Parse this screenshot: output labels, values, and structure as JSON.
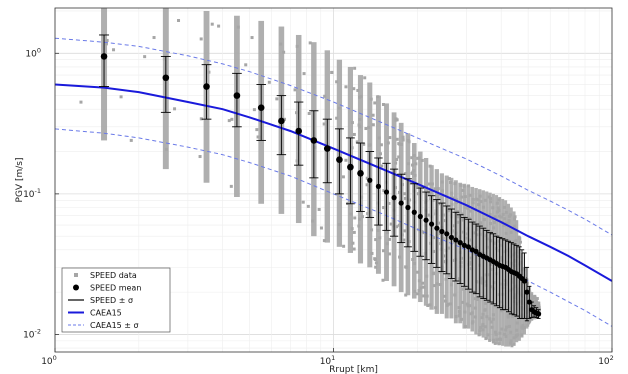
{
  "chart_data": {
    "type": "scatter",
    "title": "",
    "xlabel": "Rrupt [km]",
    "ylabel": "PGV [m/s]",
    "xscale": "log",
    "yscale": "log",
    "xlim": [
      1,
      100
    ],
    "ylim": [
      0.0075,
      2.1
    ],
    "grid": true,
    "legend_position": "bottom-left",
    "x_ticks": [
      {
        "value": 1,
        "base": "10",
        "exp": "0"
      },
      {
        "value": 10,
        "base": "10",
        "exp": "1"
      },
      {
        "value": 100,
        "base": "10",
        "exp": "2"
      }
    ],
    "y_ticks": [
      {
        "value": 0.01,
        "base": "10",
        "exp": "-2"
      },
      {
        "value": 0.1,
        "base": "10",
        "exp": "-1"
      },
      {
        "value": 1,
        "base": "10",
        "exp": "0"
      }
    ],
    "series": [
      {
        "name": "SPEED data",
        "kind": "scatter-band",
        "color": "#a6a6a6",
        "x": [
          1.5,
          2.5,
          3.5,
          4.5,
          5.5,
          6.5,
          7.5,
          8.5,
          9.5,
          10.5,
          11.5,
          12.5,
          13.5,
          14.5,
          15.5,
          16.5,
          17.5,
          18.5,
          19.5,
          20.5,
          21.5,
          22.5,
          23.5,
          24.5,
          25.5,
          26.5,
          27.5,
          28.5,
          29.5,
          30.5,
          31.5,
          32.5,
          33.5,
          34.5,
          35.5,
          36.5,
          37.5,
          38.5,
          39.5,
          40.5,
          41.5,
          42.5,
          43.5,
          44.5,
          45.5,
          46.5,
          47.5,
          48.5,
          49.5,
          50.5,
          51.5,
          52.5,
          53.5,
          54.5
        ],
        "ymin": [
          0.24,
          0.15,
          0.12,
          0.095,
          0.085,
          0.072,
          0.062,
          0.05,
          0.045,
          0.042,
          0.038,
          0.032,
          0.03,
          0.027,
          0.024,
          0.022,
          0.02,
          0.019,
          0.018,
          0.017,
          0.016,
          0.015,
          0.014,
          0.014,
          0.013,
          0.013,
          0.012,
          0.012,
          0.011,
          0.011,
          0.0105,
          0.01,
          0.0098,
          0.0095,
          0.0092,
          0.009,
          0.0088,
          0.0085,
          0.0084,
          0.0083,
          0.0082,
          0.0082,
          0.0083,
          0.0085,
          0.0088,
          0.009,
          0.0095,
          0.01,
          0.011,
          0.012,
          0.0125,
          0.013,
          0.0132,
          0.0135
        ],
        "ymax": [
          2.1,
          2.1,
          2.0,
          1.85,
          1.7,
          1.55,
          1.35,
          1.2,
          1.05,
          0.9,
          0.8,
          0.7,
          0.62,
          0.5,
          0.44,
          0.38,
          0.32,
          0.27,
          0.23,
          0.2,
          0.18,
          0.16,
          0.15,
          0.14,
          0.135,
          0.13,
          0.125,
          0.12,
          0.118,
          0.115,
          0.112,
          0.11,
          0.108,
          0.106,
          0.104,
          0.102,
          0.1,
          0.098,
          0.095,
          0.092,
          0.09,
          0.085,
          0.08,
          0.075,
          0.065,
          0.05,
          0.038,
          0.03,
          0.025,
          0.022,
          0.02,
          0.019,
          0.018,
          0.017
        ]
      },
      {
        "name": "SPEED mean",
        "kind": "points",
        "color": "#000000",
        "x": [
          1.5,
          2.5,
          3.5,
          4.5,
          5.5,
          6.5,
          7.5,
          8.5,
          9.5,
          10.5,
          11.5,
          12.5,
          13.5,
          14.5,
          15.5,
          16.5,
          17.5,
          18.5,
          19.5,
          20.5,
          21.5,
          22.5,
          23.5,
          24.5,
          25.5,
          26.5,
          27.5,
          28.5,
          29.5,
          30.5,
          31.5,
          32.5,
          33.5,
          34.5,
          35.5,
          36.5,
          37.5,
          38.5,
          39.5,
          40.5,
          41.5,
          42.5,
          43.5,
          44.5,
          45.5,
          46.5,
          47.5,
          48.5,
          49.5,
          50.5,
          51.5,
          52.5,
          53.5,
          54.5
        ],
        "y": [
          0.95,
          0.67,
          0.58,
          0.5,
          0.41,
          0.33,
          0.28,
          0.24,
          0.21,
          0.175,
          0.155,
          0.14,
          0.125,
          0.113,
          0.103,
          0.094,
          0.086,
          0.08,
          0.074,
          0.069,
          0.065,
          0.061,
          0.057,
          0.054,
          0.052,
          0.049,
          0.047,
          0.045,
          0.043,
          0.042,
          0.04,
          0.039,
          0.037,
          0.036,
          0.035,
          0.034,
          0.033,
          0.032,
          0.031,
          0.0305,
          0.03,
          0.029,
          0.028,
          0.0275,
          0.027,
          0.026,
          0.025,
          0.024,
          0.02,
          0.017,
          0.015,
          0.0145,
          0.0142,
          0.014
        ]
      },
      {
        "name": "SPEED ± σ",
        "kind": "errorbars",
        "color": "#000000",
        "ylow": [
          0.58,
          0.38,
          0.34,
          0.3,
          0.24,
          0.19,
          0.16,
          0.13,
          0.12,
          0.1,
          0.085,
          0.075,
          0.068,
          0.06,
          0.055,
          0.05,
          0.045,
          0.042,
          0.039,
          0.036,
          0.034,
          0.032,
          0.03,
          0.028,
          0.027,
          0.025,
          0.024,
          0.023,
          0.022,
          0.021,
          0.02,
          0.0195,
          0.0185,
          0.018,
          0.0175,
          0.017,
          0.0165,
          0.016,
          0.0155,
          0.015,
          0.015,
          0.0145,
          0.014,
          0.0138,
          0.0135,
          0.013,
          0.013,
          0.013,
          0.0125,
          0.013,
          0.0132,
          0.0133,
          0.0132,
          0.013
        ],
        "yhigh": [
          1.35,
          0.95,
          0.83,
          0.72,
          0.6,
          0.5,
          0.45,
          0.39,
          0.34,
          0.29,
          0.25,
          0.23,
          0.2,
          0.18,
          0.165,
          0.15,
          0.138,
          0.128,
          0.118,
          0.11,
          0.103,
          0.097,
          0.091,
          0.086,
          0.082,
          0.078,
          0.074,
          0.071,
          0.068,
          0.066,
          0.063,
          0.061,
          0.059,
          0.057,
          0.055,
          0.053,
          0.052,
          0.05,
          0.049,
          0.048,
          0.047,
          0.046,
          0.045,
          0.044,
          0.043,
          0.042,
          0.04,
          0.038,
          0.03,
          0.022,
          0.017,
          0.016,
          0.0155,
          0.015
        ]
      },
      {
        "name": "CAEA15",
        "kind": "line",
        "color": "#1a1adb",
        "x": [
          1,
          1.5,
          2,
          3,
          4,
          5,
          7,
          10,
          15,
          20,
          30,
          40,
          50,
          60,
          70,
          80,
          100
        ],
        "y": [
          0.6,
          0.57,
          0.53,
          0.45,
          0.4,
          0.35,
          0.28,
          0.21,
          0.15,
          0.118,
          0.083,
          0.063,
          0.05,
          0.042,
          0.036,
          0.031,
          0.024
        ]
      },
      {
        "name": "CAEA15 ± σ",
        "kind": "dashed-band",
        "color": "#6a7ae8",
        "x": [
          1,
          1.5,
          2,
          3,
          4,
          5,
          7,
          10,
          15,
          20,
          30,
          40,
          50,
          60,
          70,
          80,
          100
        ],
        "yupper": [
          1.28,
          1.2,
          1.12,
          0.96,
          0.84,
          0.74,
          0.59,
          0.45,
          0.32,
          0.25,
          0.177,
          0.134,
          0.106,
          0.089,
          0.076,
          0.066,
          0.051
        ],
        "ylower": [
          0.29,
          0.27,
          0.25,
          0.215,
          0.19,
          0.167,
          0.134,
          0.1,
          0.072,
          0.056,
          0.04,
          0.03,
          0.024,
          0.02,
          0.017,
          0.0148,
          0.0114
        ]
      }
    ],
    "legend": [
      {
        "label": "SPEED data",
        "symbol": "gray-square"
      },
      {
        "label": "SPEED mean",
        "symbol": "black-dot"
      },
      {
        "label": "SPEED ± σ",
        "symbol": "black-line"
      },
      {
        "label": "CAEA15",
        "symbol": "blue-line"
      },
      {
        "label": "CAEA15 ± σ",
        "symbol": "blue-dashed"
      }
    ]
  }
}
